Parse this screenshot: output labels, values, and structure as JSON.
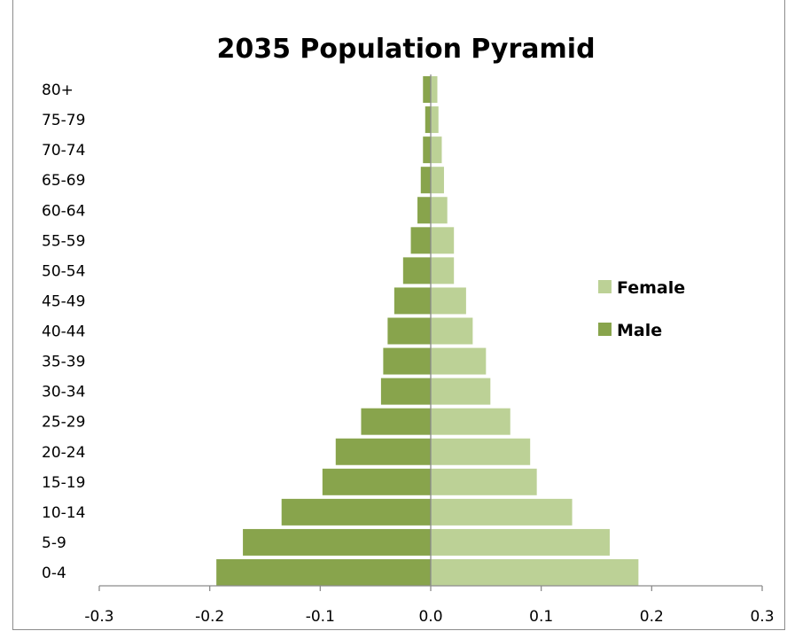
{
  "chart_data": {
    "type": "bar",
    "orientation": "horizontal",
    "title": "2035 Population Pyramid",
    "categories": [
      "0-4",
      "5-9",
      "10-14",
      "15-19",
      "20-24",
      "25-29",
      "30-34",
      "35-39",
      "40-44",
      "45-49",
      "50-54",
      "55-59",
      "60-64",
      "65-69",
      "70-74",
      "75-79",
      "80+"
    ],
    "series": [
      {
        "name": "Female",
        "color": "#bcd196",
        "values": [
          0.188,
          0.162,
          0.128,
          0.096,
          0.09,
          0.072,
          0.054,
          0.05,
          0.038,
          0.032,
          0.021,
          0.021,
          0.015,
          0.012,
          0.01,
          0.007,
          0.006
        ]
      },
      {
        "name": "Male",
        "color": "#88a44c",
        "values": [
          -0.194,
          -0.17,
          -0.135,
          -0.098,
          -0.086,
          -0.063,
          -0.045,
          -0.043,
          -0.039,
          -0.033,
          -0.025,
          -0.018,
          -0.012,
          -0.009,
          -0.007,
          -0.005,
          -0.007
        ]
      }
    ],
    "xticks": [
      "-0.3",
      "-0.2",
      "-0.1",
      "0.0",
      "0.1",
      "0.2",
      "0.3"
    ],
    "xlim": [
      -0.3,
      0.3
    ],
    "legend": [
      "Female",
      "Male"
    ],
    "legend_position": "right",
    "grid": false
  }
}
